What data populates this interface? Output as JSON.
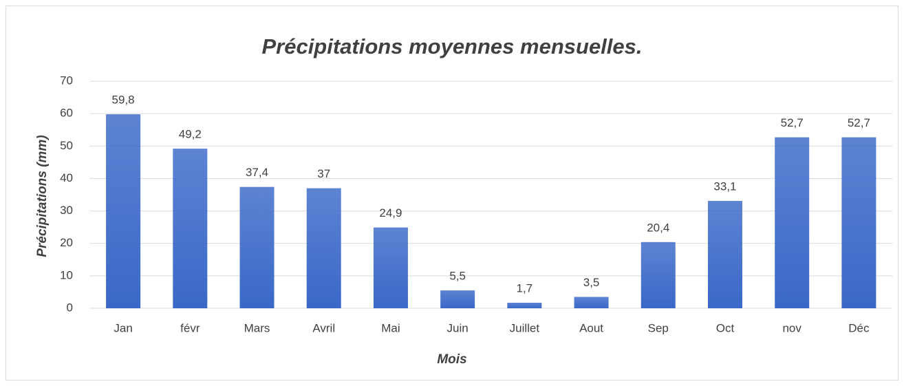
{
  "chart_data": {
    "type": "bar",
    "title": "Précipitations moyennes mensuelles.",
    "x_label": "Mois",
    "y_label": "Précipitations (mm)",
    "categories": [
      "Jan",
      "févr",
      "Mars",
      "Avril",
      "Mai",
      "Juin",
      "Juillet",
      "Aout",
      "Sep",
      "Oct",
      "nov",
      "Déc"
    ],
    "values": [
      59.8,
      49.2,
      37.4,
      37,
      24.9,
      5.5,
      1.7,
      3.5,
      20.4,
      33.1,
      52.7,
      52.7
    ],
    "value_labels": [
      "59,8",
      "49,2",
      "37,4",
      "37",
      "24,9",
      "5,5",
      "1,7",
      "3,5",
      "20,4",
      "33,1",
      "52,7",
      "52,7"
    ],
    "color": "#3a68c8",
    "ylim": [
      0,
      70
    ],
    "yticks": [
      0,
      10,
      20,
      30,
      40,
      50,
      60,
      70
    ],
    "grid": true
  }
}
